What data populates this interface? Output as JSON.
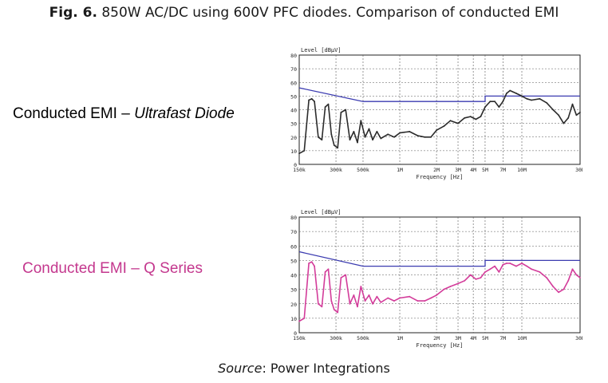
{
  "figure": {
    "number_label": "Fig. 6.",
    "title": "850W AC/DC using 600V PFC diodes. Comparison of conducted EMI",
    "source_prefix": "Source",
    "source_value": ": Power Integrations"
  },
  "labels": {
    "chart1_prefix": "Conducted EMI – ",
    "chart1_emph": "Ultrafast Diode",
    "chart2": "Conducted EMI – Q Series"
  },
  "colors": {
    "trace1": "#2b2b2b",
    "trace2": "#d33c9a",
    "limit": "#3b3bb0",
    "grid": "#555555",
    "label2": "#c4388e"
  },
  "chart_data": [
    {
      "type": "line",
      "ylabel": "Level [dBµV]",
      "xlabel": "Frequency [Hz]",
      "x_scale": "log",
      "xlim": [
        150000,
        30000000
      ],
      "ylim": [
        0,
        80
      ],
      "y_ticks": [
        "0",
        "10",
        "20",
        "30",
        "40",
        "50",
        "60",
        "70",
        "80"
      ],
      "x_ticks": [
        {
          "v": 150000,
          "label": "150k"
        },
        {
          "v": 300000,
          "label": "300k"
        },
        {
          "v": 500000,
          "label": "500k"
        },
        {
          "v": 1000000,
          "label": "1M"
        },
        {
          "v": 2000000,
          "label": "2M"
        },
        {
          "v": 3000000,
          "label": "3M"
        },
        {
          "v": 4000000,
          "label": "4M"
        },
        {
          "v": 5000000,
          "label": "5M"
        },
        {
          "v": 7000000,
          "label": "7M"
        },
        {
          "v": 10000000,
          "label": "10M"
        },
        {
          "v": 30000000,
          "label": "30M"
        }
      ],
      "grid": true,
      "series": [
        {
          "role": "limit",
          "x": [
            150000,
            500000,
            5000000,
            5000000,
            30000000
          ],
          "y": [
            56,
            46,
            46,
            50,
            50
          ]
        },
        {
          "role": "measured",
          "x": [
            150000,
            165000,
            180000,
            190000,
            200000,
            215000,
            230000,
            245000,
            260000,
            275000,
            290000,
            310000,
            330000,
            360000,
            390000,
            420000,
            450000,
            480000,
            520000,
            560000,
            600000,
            650000,
            700000,
            800000,
            900000,
            1000000,
            1200000,
            1400000,
            1600000,
            1800000,
            2000000,
            2300000,
            2600000,
            3000000,
            3400000,
            3800000,
            4200000,
            4600000,
            5000000,
            5500000,
            6000000,
            6500000,
            7000000,
            7500000,
            8000000,
            9000000,
            10000000,
            11000000,
            12000000,
            14000000,
            16000000,
            18000000,
            20000000,
            22000000,
            24000000,
            26000000,
            28000000,
            30000000
          ],
          "y": [
            8,
            10,
            47,
            48,
            46,
            20,
            18,
            42,
            44,
            22,
            14,
            12,
            38,
            40,
            18,
            24,
            16,
            32,
            20,
            26,
            18,
            24,
            19,
            22,
            20,
            23,
            24,
            21,
            20,
            20,
            25,
            28,
            32,
            30,
            34,
            35,
            33,
            35,
            42,
            46,
            46,
            42,
            46,
            52,
            54,
            52,
            50,
            48,
            47,
            48,
            45,
            40,
            36,
            30,
            34,
            44,
            36,
            38
          ]
        }
      ]
    },
    {
      "type": "line",
      "ylabel": "Level [dBµV]",
      "xlabel": "Frequency [Hz]",
      "x_scale": "log",
      "xlim": [
        150000,
        30000000
      ],
      "ylim": [
        0,
        80
      ],
      "y_ticks": [
        "0",
        "10",
        "20",
        "30",
        "40",
        "50",
        "60",
        "70",
        "80"
      ],
      "x_ticks": [
        {
          "v": 150000,
          "label": "150k"
        },
        {
          "v": 300000,
          "label": "300k"
        },
        {
          "v": 500000,
          "label": "500k"
        },
        {
          "v": 1000000,
          "label": "1M"
        },
        {
          "v": 2000000,
          "label": "2M"
        },
        {
          "v": 3000000,
          "label": "3M"
        },
        {
          "v": 4000000,
          "label": "4M"
        },
        {
          "v": 5000000,
          "label": "5M"
        },
        {
          "v": 7000000,
          "label": "7M"
        },
        {
          "v": 10000000,
          "label": "10M"
        },
        {
          "v": 30000000,
          "label": "30M"
        }
      ],
      "grid": true,
      "series": [
        {
          "role": "limit",
          "x": [
            150000,
            500000,
            5000000,
            5000000,
            30000000
          ],
          "y": [
            56,
            46,
            46,
            50,
            50
          ]
        },
        {
          "role": "measured",
          "x": [
            150000,
            165000,
            180000,
            190000,
            200000,
            215000,
            230000,
            245000,
            260000,
            275000,
            290000,
            310000,
            330000,
            360000,
            390000,
            420000,
            450000,
            480000,
            520000,
            560000,
            600000,
            650000,
            700000,
            800000,
            900000,
            1000000,
            1200000,
            1400000,
            1600000,
            1800000,
            2000000,
            2300000,
            2600000,
            3000000,
            3400000,
            3800000,
            4200000,
            4600000,
            5000000,
            5500000,
            6000000,
            6500000,
            7000000,
            7500000,
            8000000,
            9000000,
            10000000,
            11000000,
            12000000,
            14000000,
            16000000,
            18000000,
            20000000,
            22000000,
            24000000,
            26000000,
            28000000,
            30000000
          ],
          "y": [
            8,
            10,
            48,
            49,
            46,
            20,
            18,
            42,
            44,
            22,
            16,
            14,
            38,
            40,
            20,
            26,
            18,
            32,
            22,
            26,
            20,
            25,
            21,
            24,
            22,
            24,
            25,
            22,
            22,
            24,
            26,
            30,
            32,
            34,
            36,
            40,
            37,
            38,
            42,
            44,
            46,
            42,
            47,
            48,
            48,
            46,
            48,
            46,
            44,
            42,
            38,
            32,
            28,
            30,
            36,
            44,
            40,
            38
          ]
        }
      ]
    }
  ]
}
